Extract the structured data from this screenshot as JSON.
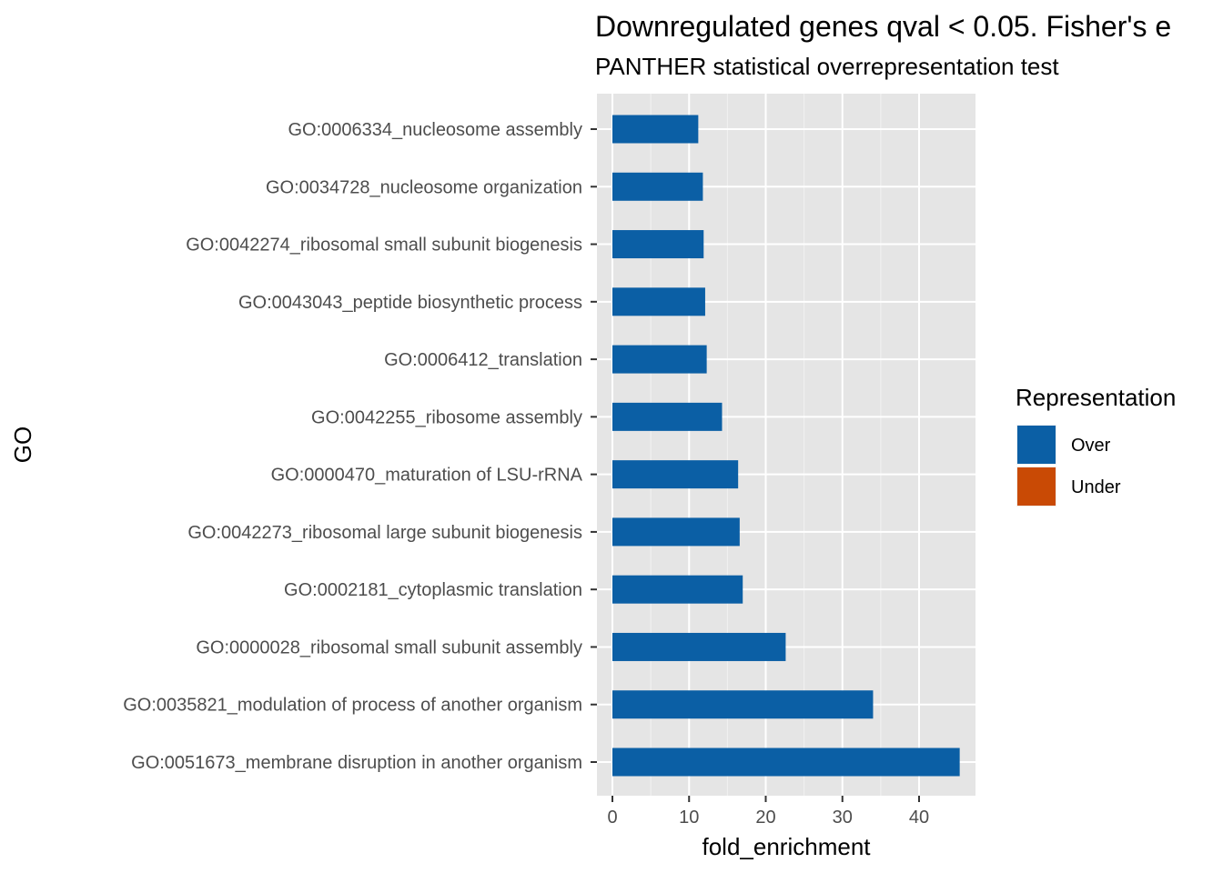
{
  "chart_data": {
    "type": "bar",
    "orientation": "horizontal",
    "title": "Downregulated genes qval < 0.05. Fisher's e",
    "subtitle": "PANTHER statistical overrepresentation test",
    "xlabel": "fold_enrichment",
    "ylabel": "GO",
    "xlim": [
      0,
      47
    ],
    "xticks": [
      0,
      10,
      20,
      30,
      40
    ],
    "grid": true,
    "categories": [
      "GO:0006334_nucleosome assembly",
      "GO:0034728_nucleosome organization",
      "GO:0042274_ribosomal small subunit biogenesis",
      "GO:0043043_peptide biosynthetic process",
      "GO:0006412_translation",
      "GO:0042255_ribosome assembly",
      "GO:0000470_maturation of LSU-rRNA",
      "GO:0042273_ribosomal large subunit biogenesis",
      "GO:0002181_cytoplasmic translation",
      "GO:0000028_ribosomal small subunit assembly",
      "GO:0035821_modulation of process of another organism",
      "GO:0051673_membrane disruption in another organism"
    ],
    "values": [
      11.2,
      11.8,
      11.9,
      12.1,
      12.3,
      14.3,
      16.4,
      16.6,
      17.0,
      22.6,
      34.0,
      45.3
    ],
    "representation": [
      "Over",
      "Over",
      "Over",
      "Over",
      "Over",
      "Over",
      "Over",
      "Over",
      "Over",
      "Over",
      "Over",
      "Over"
    ],
    "legend": {
      "title": "Representation",
      "placement": "right",
      "entries": [
        {
          "label": "Over",
          "color": "#0b5fa5"
        },
        {
          "label": "Under",
          "color": "#c94a05"
        }
      ]
    },
    "colors": {
      "panel": "#e5e5e5",
      "grid_major": "#ffffff",
      "grid_minor": "#f2f2f2"
    }
  }
}
